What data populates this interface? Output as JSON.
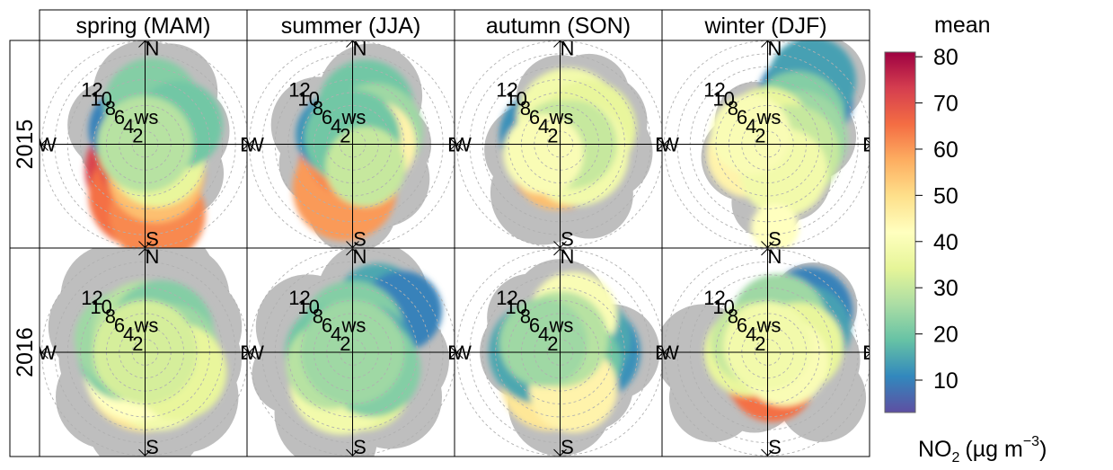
{
  "chart_data": {
    "type": "heatmap",
    "subtype": "polar-plot",
    "columns": [
      "spring (MAM)",
      "summer (JJA)",
      "autumn (SON)",
      "winter (DJF)"
    ],
    "rows": [
      "2015",
      "2016"
    ],
    "compass": {
      "north": "N",
      "south": "S",
      "east": "E",
      "west": "W"
    },
    "radial_axis": {
      "label": "ws",
      "ticks": [
        2,
        4,
        6,
        8,
        10,
        12
      ],
      "max": 16
    },
    "colorbar": {
      "title": "mean",
      "label_main": "NO",
      "label_sub": "2",
      "label_unit": "(µg m",
      "label_sup": "−3",
      "label_close": ")",
      "ticks": [
        10,
        20,
        30,
        40,
        50,
        60,
        70,
        80
      ],
      "range": [
        3,
        81
      ],
      "palette": [
        "#5e4fa2",
        "#3288bd",
        "#66c2a5",
        "#abdda4",
        "#e6f598",
        "#ffffbf",
        "#fee08b",
        "#fdae61",
        "#f46d43",
        "#d53e4f",
        "#9e0142"
      ]
    },
    "panels": [
      {
        "season": "spring (MAM)",
        "year": "2015",
        "grey": [
          [
            0,
            8,
            2.6
          ],
          [
            25,
            9,
            2.4
          ],
          [
            70,
            6,
            2.4
          ],
          [
            95,
            5,
            2.2
          ],
          [
            130,
            7,
            2.2
          ],
          [
            300,
            6,
            2.2
          ],
          [
            270,
            4,
            2
          ]
        ],
        "blobs": [
          [
            180,
            4,
            3,
            72
          ],
          [
            185,
            8,
            2.6,
            65
          ],
          [
            170,
            11,
            2.4,
            62
          ],
          [
            200,
            3,
            2,
            70
          ],
          [
            160,
            5,
            2.4,
            55
          ],
          [
            300,
            2,
            2,
            15
          ],
          [
            320,
            3,
            2.2,
            10
          ],
          [
            45,
            3,
            2.2,
            12
          ],
          [
            10,
            6,
            2.4,
            22
          ],
          [
            80,
            3,
            2,
            28
          ],
          [
            140,
            3,
            2.4,
            35
          ],
          [
            60,
            6,
            2.2,
            20
          ],
          [
            0,
            0,
            2.4,
            28
          ]
        ]
      },
      {
        "season": "summer (JJA)",
        "year": "2015",
        "grey": [
          [
            20,
            8,
            2.6
          ],
          [
            300,
            6,
            2.4
          ],
          [
            140,
            7,
            2.4
          ],
          [
            180,
            10,
            2.2
          ],
          [
            90,
            6,
            2
          ],
          [
            240,
            6,
            2
          ]
        ],
        "blobs": [
          [
            185,
            4,
            2.6,
            65
          ],
          [
            190,
            7,
            2.6,
            60
          ],
          [
            200,
            2,
            2,
            62
          ],
          [
            300,
            3,
            2,
            12
          ],
          [
            20,
            6,
            2.4,
            20
          ],
          [
            60,
            4,
            2.4,
            25
          ],
          [
            120,
            2,
            2,
            28
          ],
          [
            90,
            3,
            2.2,
            45
          ],
          [
            0,
            1,
            2.4,
            20
          ],
          [
            150,
            4,
            2,
            30
          ]
        ]
      },
      {
        "season": "autumn (SON)",
        "year": "2015",
        "grey": [
          [
            0,
            7,
            2.2
          ],
          [
            200,
            8,
            2.6
          ],
          [
            150,
            9,
            2.2
          ],
          [
            60,
            7,
            2.4
          ],
          [
            100,
            7,
            2.4
          ],
          [
            260,
            5,
            2.2
          ],
          [
            30,
            9,
            2
          ]
        ],
        "blobs": [
          [
            180,
            2,
            2.6,
            65
          ],
          [
            190,
            4,
            2,
            55
          ],
          [
            300,
            3,
            2.2,
            12
          ],
          [
            20,
            4,
            2.6,
            38
          ],
          [
            60,
            5,
            2.4,
            35
          ],
          [
            120,
            3,
            2.6,
            38
          ],
          [
            90,
            2,
            2.2,
            30
          ],
          [
            0,
            0,
            2.2,
            30
          ],
          [
            240,
            3,
            2,
            40
          ]
        ]
      },
      {
        "season": "winter (DJF)",
        "year": "2015",
        "grey": [
          [
            40,
            13,
            2.2
          ],
          [
            80,
            7,
            2.2
          ],
          [
            150,
            6,
            2.2
          ],
          [
            240,
            4,
            2.2
          ],
          [
            330,
            4,
            2
          ],
          [
            180,
            9,
            1.8
          ]
        ],
        "blobs": [
          [
            40,
            9,
            2.4,
            10
          ],
          [
            35,
            12,
            2.2,
            14
          ],
          [
            50,
            6,
            2.4,
            22
          ],
          [
            80,
            5,
            2.4,
            25
          ],
          [
            200,
            1,
            2.2,
            62
          ],
          [
            240,
            3,
            2.2,
            45
          ],
          [
            0,
            2,
            2.2,
            35
          ],
          [
            110,
            4,
            2.4,
            30
          ],
          [
            150,
            5,
            2.2,
            38
          ],
          [
            300,
            3,
            2,
            40
          ],
          [
            175,
            13,
            1.2,
            42
          ]
        ]
      },
      {
        "season": "spring (MAM)",
        "year": "2016",
        "grey": [
          [
            0,
            10,
            3
          ],
          [
            30,
            10,
            2.6
          ],
          [
            60,
            8,
            2.6
          ],
          [
            100,
            7,
            2.6
          ],
          [
            140,
            9,
            2.8
          ],
          [
            180,
            10,
            3
          ],
          [
            220,
            9,
            2.6
          ],
          [
            260,
            6,
            2.4
          ],
          [
            300,
            8,
            2.6
          ],
          [
            330,
            10,
            2.6
          ],
          [
            20,
            13,
            2
          ]
        ],
        "blobs": [
          [
            180,
            3,
            3,
            48
          ],
          [
            150,
            4,
            2.8,
            38
          ],
          [
            210,
            3,
            2.6,
            42
          ],
          [
            270,
            3,
            2.4,
            22
          ],
          [
            300,
            4,
            2.4,
            25
          ],
          [
            0,
            3,
            2.6,
            28
          ],
          [
            40,
            4,
            2.6,
            22
          ],
          [
            90,
            4,
            2.4,
            25
          ],
          [
            120,
            6,
            2.4,
            35
          ],
          [
            0,
            0,
            2.6,
            32
          ]
        ]
      },
      {
        "season": "summer (JJA)",
        "year": "2016",
        "grey": [
          [
            20,
            9,
            2.8
          ],
          [
            300,
            8,
            2.6
          ],
          [
            200,
            10,
            2.8
          ],
          [
            140,
            9,
            2.6
          ],
          [
            250,
            10,
            2
          ],
          [
            100,
            7,
            2.6
          ],
          [
            190,
            14,
            2
          ]
        ],
        "blobs": [
          [
            30,
            8,
            2.2,
            15
          ],
          [
            50,
            10,
            2,
            10
          ],
          [
            0,
            3,
            2.6,
            22
          ],
          [
            270,
            3,
            2.4,
            20
          ],
          [
            90,
            2,
            2.4,
            15
          ],
          [
            180,
            3,
            2.6,
            30
          ],
          [
            160,
            5,
            2.4,
            35
          ],
          [
            200,
            5,
            2.6,
            38
          ],
          [
            130,
            4,
            2.4,
            22
          ],
          [
            240,
            4,
            2.2,
            28
          ],
          [
            0,
            0,
            2.6,
            25
          ]
        ]
      },
      {
        "season": "autumn (SON)",
        "year": "2016",
        "grey": [
          [
            0,
            7,
            2.4
          ],
          [
            90,
            8,
            2.4
          ],
          [
            180,
            8,
            2.6
          ],
          [
            270,
            5,
            2.4
          ],
          [
            320,
            7,
            2.2
          ],
          [
            140,
            7,
            2.2
          ]
        ],
        "blobs": [
          [
            180,
            3,
            2.4,
            55
          ],
          [
            200,
            5,
            2.4,
            48
          ],
          [
            270,
            3,
            2.6,
            15
          ],
          [
            90,
            5,
            2.4,
            12
          ],
          [
            60,
            4,
            2.4,
            15
          ],
          [
            20,
            6,
            2.2,
            40
          ],
          [
            120,
            3,
            2.2,
            20
          ],
          [
            160,
            6,
            2.2,
            45
          ],
          [
            0,
            2,
            2.4,
            28
          ],
          [
            300,
            3,
            2.2,
            25
          ]
        ]
      },
      {
        "season": "winter (DJF)",
        "year": "2016",
        "grey": [
          [
            250,
            7,
            2.6
          ],
          [
            270,
            10,
            2.4
          ],
          [
            230,
            11,
            2.2
          ],
          [
            130,
            11,
            2.2
          ],
          [
            100,
            7,
            2.4
          ],
          [
            45,
            10,
            2.2
          ],
          [
            200,
            6,
            2.2
          ]
        ],
        "blobs": [
          [
            180,
            2,
            2.4,
            62
          ],
          [
            170,
            4,
            2.2,
            65
          ],
          [
            45,
            9,
            2.2,
            10
          ],
          [
            60,
            7,
            2.2,
            14
          ],
          [
            20,
            5,
            2.4,
            25
          ],
          [
            80,
            5,
            2.2,
            35
          ],
          [
            270,
            3,
            2.2,
            35
          ],
          [
            300,
            3,
            2,
            30
          ],
          [
            120,
            3,
            2.2,
            40
          ],
          [
            0,
            1,
            2.2,
            38
          ]
        ]
      }
    ]
  }
}
